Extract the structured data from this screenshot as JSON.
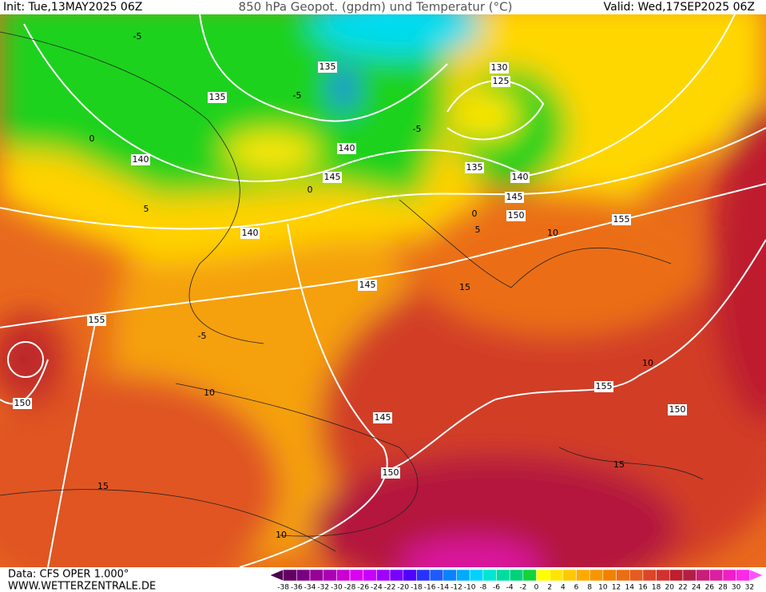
{
  "header": {
    "init": "Init: Tue,13MAY2025 06Z",
    "title": "850 hPa Geopot. (gpdm) und Temperatur (°C)",
    "valid": "Valid: Wed,17SEP2025 06Z"
  },
  "footer": {
    "data": "Data: CFS OPER 1.000°",
    "site": "WWW.WETTERZENTRALE.DE"
  },
  "colorbar": {
    "labels": [
      -38,
      -36,
      -34,
      -32,
      -30,
      -28,
      -26,
      -24,
      -22,
      -20,
      -18,
      -16,
      -14,
      -12,
      -10,
      -8,
      -6,
      -4,
      -2,
      0,
      2,
      4,
      6,
      8,
      10,
      12,
      14,
      16,
      18,
      20,
      22,
      24,
      26,
      28,
      30,
      32
    ],
    "colors": [
      "#500050",
      "#640064",
      "#7a0082",
      "#960096",
      "#aa00b4",
      "#c800d2",
      "#dc00f0",
      "#c800ff",
      "#a000ff",
      "#7800ff",
      "#5000ff",
      "#2832ff",
      "#1e5aff",
      "#0a82ff",
      "#00aaff",
      "#00d2ff",
      "#00e6d2",
      "#00dca0",
      "#00d278",
      "#14d23c",
      "#ffff00",
      "#ffe600",
      "#ffc800",
      "#ffaa00",
      "#f59600",
      "#f08200",
      "#eb6e14",
      "#e65a1e",
      "#dc4628",
      "#d2322d",
      "#be1e2d",
      "#b41e46",
      "#c81e78",
      "#dc1ea0",
      "#f01ec8",
      "#ff28e6",
      "#ff50ff"
    ]
  },
  "geopotential_labels": [
    135,
    130,
    125,
    135,
    140,
    140,
    135,
    145,
    140,
    145,
    150,
    155,
    140,
    145,
    155,
    155,
    150,
    150,
    145,
    150
  ],
  "temperature_labels": [
    -5,
    -5,
    -5,
    0,
    0,
    5,
    0,
    5,
    10,
    15,
    -5,
    10,
    10,
    15,
    15,
    10
  ]
}
